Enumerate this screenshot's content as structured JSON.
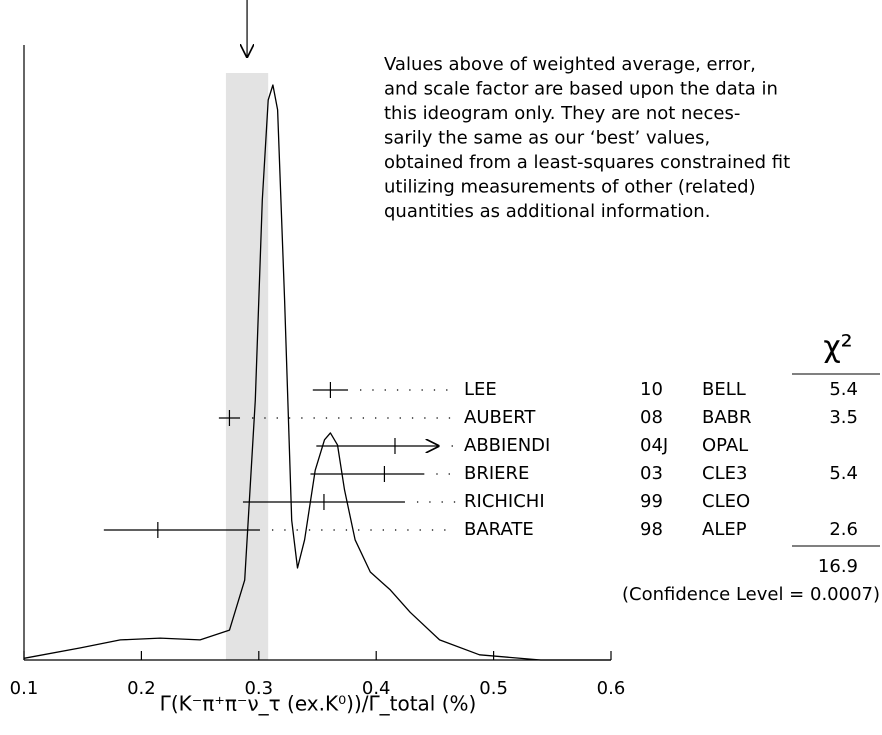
{
  "chart_data": {
    "type": "ideogram",
    "xlabel": "Γ(K⁻π⁺π⁻ν_τ (ex.K⁰))/Γ_total (%)",
    "xlim": [
      0.1,
      0.6
    ],
    "xticks": [
      0.1,
      0.2,
      0.3,
      0.4,
      0.5,
      0.6
    ],
    "note_lines": [
      "Values above of weighted average, error,",
      "and scale factor are based upon the data in",
      "this ideogram only.  They are not neces-",
      "sarily the same as our ‘best’ values,",
      "obtained from a least-squares constrained fit",
      "utilizing measurements of other (related)",
      "quantities as additional information."
    ],
    "average": 0.29,
    "average_band": [
      0.272,
      0.308
    ],
    "band_color": "#e3e3e3",
    "curve": {
      "x": [
        0.1,
        0.148,
        0.182,
        0.216,
        0.25,
        0.275,
        0.288,
        0.297,
        0.303,
        0.308,
        0.312,
        0.316,
        0.322,
        0.328,
        0.333,
        0.339,
        0.348,
        0.356,
        0.361,
        0.367,
        0.373,
        0.382,
        0.395,
        0.412,
        0.429,
        0.454,
        0.488,
        0.54,
        0.6
      ],
      "values": [
        0.003,
        0.021,
        0.035,
        0.038,
        0.035,
        0.052,
        0.139,
        0.452,
        0.8,
        0.974,
        1,
        0.957,
        0.626,
        0.243,
        0.16,
        0.209,
        0.33,
        0.383,
        0.395,
        0.374,
        0.296,
        0.209,
        0.153,
        0.122,
        0.083,
        0.035,
        0.009,
        0,
        0
      ]
    },
    "measurements": {
      "authors": [
        "LEE",
        "AUBERT",
        "ABBIENDI",
        "BRIERE",
        "RICHICHI",
        "BARATE"
      ],
      "years": [
        "10",
        "08",
        "04J",
        "03",
        "99",
        "98"
      ],
      "experiments": [
        "BELL",
        "BABR",
        "OPAL",
        "CLE3",
        "CLEO",
        "ALEP"
      ],
      "values": [
        0.361,
        0.275,
        0.416,
        0.407,
        0.3555,
        0.214
      ],
      "errors_minus": [
        0.015,
        0.009,
        0.067,
        0.063,
        0.069,
        0.046
      ],
      "errors_plus": [
        0.015,
        0.009,
        0.038,
        0.034,
        0.069,
        0.087
      ],
      "arrow": [
        false,
        false,
        true,
        false,
        false,
        false
      ],
      "chi2": [
        5.4,
        3.5,
        null,
        5.4,
        null,
        2.6
      ]
    },
    "chi2_header": "χ²",
    "chi2_total": 16.9,
    "confidence": "(Confidence Level = 0.0007)"
  }
}
